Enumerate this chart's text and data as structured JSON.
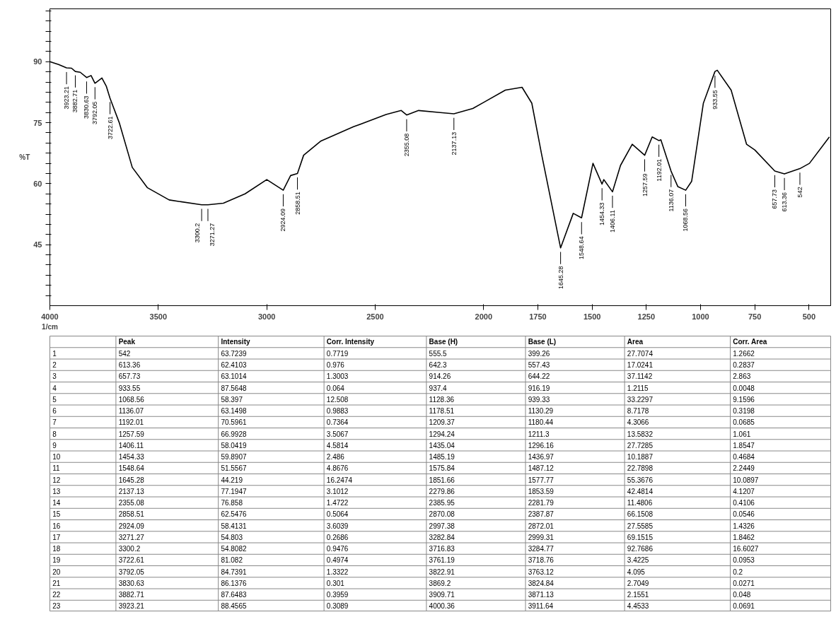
{
  "chart_data": {
    "type": "line",
    "ylabel": "%T",
    "xlabel": "1/cm",
    "x": [
      4000,
      3960,
      3923.21,
      3900,
      3882.71,
      3860,
      3830.63,
      3810,
      3792.05,
      3760,
      3740,
      3722.61,
      3680,
      3620,
      3550,
      3450,
      3300.2,
      3271.27,
      3200,
      3100,
      3000,
      2924.09,
      2890,
      2858.51,
      2830,
      2750,
      2600,
      2450,
      2380,
      2355.08,
      2300,
      2200,
      2137.13,
      2050,
      2000,
      1900,
      1823,
      1778,
      1732,
      1645.28,
      1587,
      1548.64,
      1496,
      1454.33,
      1446,
      1406.11,
      1369,
      1315,
      1257.59,
      1223,
      1192.01,
      1183,
      1136.07,
      1105,
      1068.56,
      1041,
      987,
      933.55,
      923,
      859,
      788,
      750,
      657.73,
      613.36,
      542,
      498,
      406
    ],
    "values": [
      90,
      89.3,
      88.5,
      88.4,
      87.6,
      87.4,
      86.1,
      86.6,
      84.7,
      86,
      84,
      81,
      75,
      64,
      59,
      56,
      54.8,
      54.8,
      55.2,
      57.5,
      61,
      58.4,
      62,
      62.5,
      67,
      70.5,
      74,
      77,
      78,
      76.9,
      78,
      77.5,
      77.2,
      78.5,
      80,
      83,
      83.7,
      79.8,
      67,
      44.2,
      52.7,
      51.6,
      65,
      59.9,
      61,
      58,
      64.5,
      69.7,
      67,
      71.5,
      70.6,
      70.8,
      63.1,
      59.3,
      58.4,
      60.6,
      79.8,
      87.6,
      87.9,
      83,
      69.7,
      68.3,
      63.1,
      62.4,
      63.7,
      65,
      71.5
    ],
    "color": "#000000",
    "line_style": "solid",
    "marker": "none",
    "grid": false,
    "xlim": [
      4000,
      400
    ],
    "ylim": [
      30,
      103
    ],
    "xticks": [
      4000,
      3500,
      3000,
      2500,
      2000,
      1750,
      1500,
      1250,
      1000,
      750,
      500
    ],
    "yticks": [
      {
        "value": 32.5,
        "label": null
      },
      {
        "value": 35,
        "label": null
      },
      {
        "value": 37.5,
        "label": null
      },
      {
        "value": 40,
        "label": null
      },
      {
        "value": 42.5,
        "label": null
      },
      45,
      {
        "value": 47.5,
        "label": null
      },
      {
        "value": 50,
        "label": null
      },
      {
        "value": 52.5,
        "label": null
      },
      {
        "value": 55,
        "label": null
      },
      {
        "value": 57.5,
        "label": null
      },
      60,
      {
        "value": 62.5,
        "label": null
      },
      {
        "value": 65,
        "label": null
      },
      {
        "value": 67.5,
        "label": null
      },
      {
        "value": 70,
        "label": null
      },
      {
        "value": 72.5,
        "label": null
      },
      75,
      {
        "value": 77.5,
        "label": null
      },
      {
        "value": 80,
        "label": null
      },
      {
        "value": 82.5,
        "label": null
      },
      {
        "value": 85,
        "label": null
      },
      {
        "value": 87.5,
        "label": null
      },
      90,
      {
        "value": 92.5,
        "label": null
      },
      {
        "value": 95,
        "label": null
      },
      {
        "value": 97.5,
        "label": null
      },
      {
        "value": 100,
        "label": null
      },
      {
        "value": 102.5,
        "label": null
      }
    ],
    "annotations": [
      {
        "text": "542",
        "x": 542,
        "y": 63.7239
      },
      {
        "text": "613.36",
        "x": 613.36,
        "y": 62.4103
      },
      {
        "text": "657.73",
        "x": 657.73,
        "y": 63.1014
      },
      {
        "text": "933.55",
        "x": 933.55,
        "y": 87.5648
      },
      {
        "text": "1068.56",
        "x": 1068.56,
        "y": 58.397
      },
      {
        "text": "1136.07",
        "x": 1136.07,
        "y": 63.1498
      },
      {
        "text": "1192.01",
        "x": 1192.01,
        "y": 70.5961
      },
      {
        "text": "1257.59",
        "x": 1257.59,
        "y": 66.9928
      },
      {
        "text": "1406.11",
        "x": 1406.11,
        "y": 58.0419
      },
      {
        "text": "1454.33",
        "x": 1454.33,
        "y": 59.8907
      },
      {
        "text": "1548.64",
        "x": 1548.64,
        "y": 51.5567
      },
      {
        "text": "1645.28",
        "x": 1645.28,
        "y": 44.219
      },
      {
        "text": "2137.13",
        "x": 2137.13,
        "y": 77.1947
      },
      {
        "text": "2355.08",
        "x": 2355.08,
        "y": 76.858
      },
      {
        "text": "2858.51",
        "x": 2858.51,
        "y": 62.5476
      },
      {
        "text": "2924.09",
        "x": 2924.09,
        "y": 58.4131
      },
      {
        "text": "3271.27",
        "x": 3271.27,
        "y": 54.803
      },
      {
        "text": "3300.2",
        "x": 3300.2,
        "y": 54.8082
      },
      {
        "text": "3722.61",
        "x": 3722.61,
        "y": 81.082
      },
      {
        "text": "3792.05",
        "x": 3792.05,
        "y": 84.7391
      },
      {
        "text": "3830.63",
        "x": 3830.63,
        "y": 86.1376
      },
      {
        "text": "3882.71",
        "x": 3882.71,
        "y": 87.6483
      },
      {
        "text": "3923.21",
        "x": 3923.21,
        "y": 88.4565
      },
      "Peak",
      "Intensity",
      "Corr. Intensity",
      "Base (H)",
      "Base (L)",
      "Area",
      "Corr. Area",
      "1",
      "542",
      "63.7239",
      "0.7719",
      "555.5",
      "399.26",
      "27.7074",
      "1.2662",
      "2",
      "613.36",
      "62.4103",
      "0.976",
      "642.3",
      "557.43",
      "17.0241",
      "0.2837",
      "3",
      "657.73",
      "63.1014",
      "1.3003",
      "914.26",
      "644.22",
      "37.1142",
      "2.863",
      "4",
      "933.55",
      "87.5648",
      "0.064",
      "937.4",
      "916.19",
      "1.2115",
      "0.0048",
      "5",
      "1068.56",
      "58.397",
      "12.508",
      "1128.36",
      "939.33",
      "33.2297",
      "9.1596",
      "6",
      "1136.07",
      "63.1498",
      "0.9883",
      "1178.51",
      "1130.29",
      "8.7178",
      "0.3198",
      "7",
      "1192.01",
      "70.5961",
      "0.7364",
      "1209.37",
      "1180.44",
      "4.3066",
      "0.0685",
      "8",
      "1257.59",
      "66.9928",
      "3.5067",
      "1294.24",
      "1211.3",
      "13.5832",
      "1.061",
      "9",
      "1406.11",
      "58.0419",
      "4.5814",
      "1435.04",
      "1296.16",
      "27.7285",
      "1.8547",
      "10",
      "1454.33",
      "59.8907",
      "2.486",
      "1485.19",
      "1436.97",
      "10.1887",
      "0.4684",
      "11",
      "1548.64",
      "51.5567",
      "4.8676",
      "1575.84",
      "1487.12",
      "22.7898",
      "2.2449",
      "12",
      "1645.28",
      "44.219",
      "16.2474",
      "1851.66",
      "1577.77",
      "55.3676",
      "10.0897",
      "13",
      "2137.13",
      "77.1947",
      "3.1012",
      "2279.86",
      "1853.59",
      "42.4814",
      "4.1207",
      "14",
      "2355.08",
      "76.858",
      "1.4722",
      "2385.95",
      "2281.79",
      "11.4806",
      "0.4106",
      "15",
      "2858.51",
      "62.5476",
      "0.5064",
      "2870.08",
      "2387.87",
      "66.1508",
      "0.0546",
      "16",
      "2924.09",
      "58.4131",
      "3.6039",
      "2997.38",
      "2872.01",
      "27.5585",
      "1.4326",
      "17",
      "3271.27",
      "54.803",
      "0.2686",
      "3282.84",
      "2999.31",
      "69.1515",
      "1.8462",
      "18",
      "3300.2",
      "54.8082",
      "0.9476",
      "3716.83",
      "3284.77",
      "92.7686",
      "16.6027",
      "19",
      "3722.61",
      "81.082",
      "0.4974",
      "3761.19",
      "3718.76",
      "3.4225",
      "0.0953",
      "20",
      "3792.05",
      "84.7391",
      "1.3322",
      "3822.91",
      "3763.12",
      "4.095",
      "0.2",
      "21",
      "3830.63",
      "86.1376",
      "0.301",
      "3869.2",
      "3824.84",
      "2.7049",
      "0.0271",
      "22",
      "3882.71",
      "87.6483",
      "0.3959",
      "3909.71",
      "3871.13",
      "2.1551",
      "0.048",
      "23",
      "3923.21",
      "88.4565",
      "0.3089",
      "4000.36",
      "3911.64",
      "4.4533",
      "0.0691"
    ]
  }
}
